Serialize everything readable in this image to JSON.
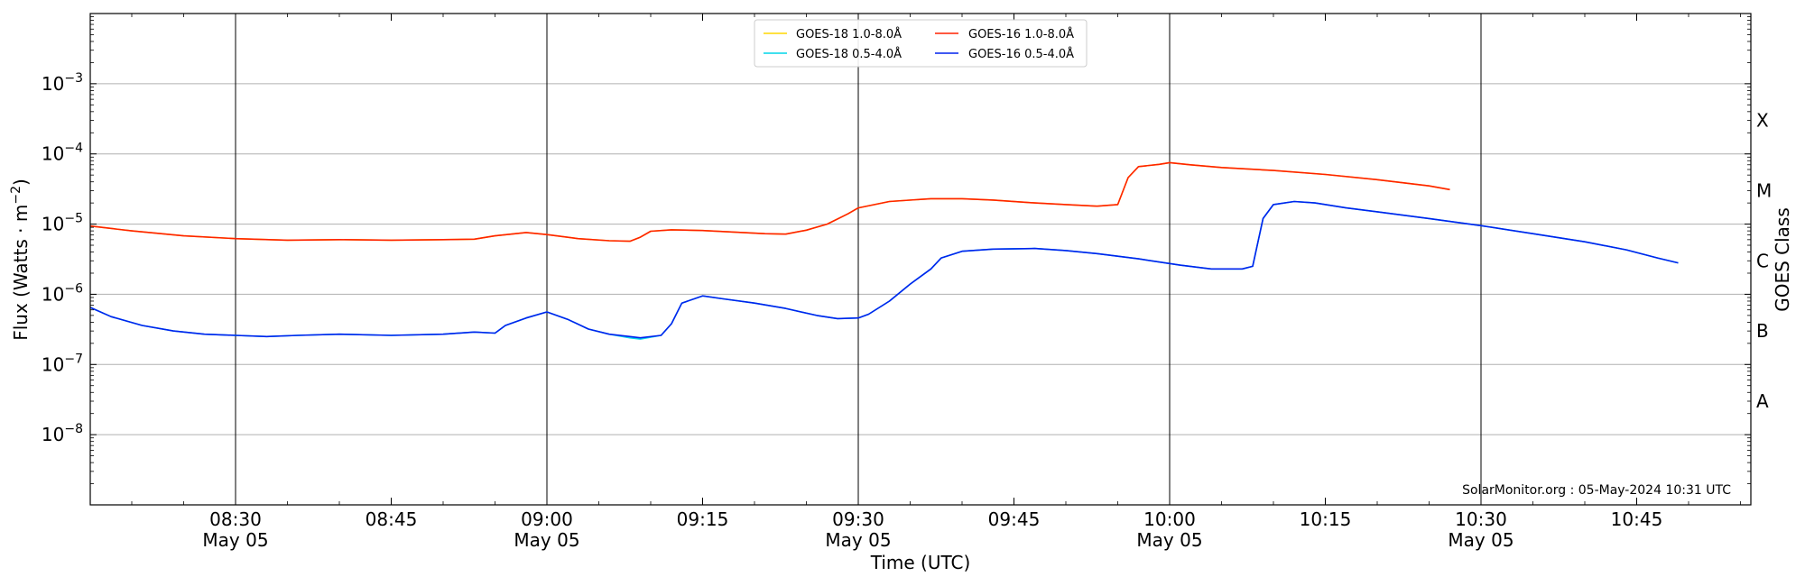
{
  "chart_data": {
    "type": "line",
    "xlabel": "Time (UTC)",
    "ylabel": "Flux (Watts · m⁻²)",
    "y2label": "GOES Class",
    "yscale": "log",
    "ylim": [
      1e-09,
      0.01
    ],
    "xlim": [
      "08:16",
      "10:56"
    ],
    "grid": "horizontal",
    "legend_position": "top-center",
    "watermark": "SolarMonitor.org : 05-May-2024 10:31 UTC",
    "x_ticks": [
      {
        "time": "08:30",
        "label": "08:30",
        "sublabel": "May 05"
      },
      {
        "time": "08:45",
        "label": "08:45",
        "sublabel": ""
      },
      {
        "time": "09:00",
        "label": "09:00",
        "sublabel": "May 05"
      },
      {
        "time": "09:15",
        "label": "09:15",
        "sublabel": ""
      },
      {
        "time": "09:30",
        "label": "09:30",
        "sublabel": "May 05"
      },
      {
        "time": "09:45",
        "label": "09:45",
        "sublabel": ""
      },
      {
        "time": "10:00",
        "label": "10:00",
        "sublabel": "May 05"
      },
      {
        "time": "10:15",
        "label": "10:15",
        "sublabel": ""
      },
      {
        "time": "10:30",
        "label": "10:30",
        "sublabel": "May 05"
      },
      {
        "time": "10:45",
        "label": "10:45",
        "sublabel": ""
      }
    ],
    "day_lines": [
      "08:30",
      "09:00",
      "09:30",
      "10:00",
      "10:30"
    ],
    "y_ticks": [
      {
        "exp": -8,
        "value": 1e-08
      },
      {
        "exp": -7,
        "value": 1e-07
      },
      {
        "exp": -6,
        "value": 1e-06
      },
      {
        "exp": -5,
        "value": 1e-05
      },
      {
        "exp": -4,
        "value": 0.0001
      },
      {
        "exp": -3,
        "value": 0.001
      }
    ],
    "class_labels": [
      {
        "label": "A",
        "value": 3e-08
      },
      {
        "label": "B",
        "value": 3e-07
      },
      {
        "label": "C",
        "value": 3e-06
      },
      {
        "label": "M",
        "value": 3e-05
      },
      {
        "label": "X",
        "value": 0.0003
      }
    ],
    "series": [
      {
        "name": "GOES-18 1.0-8.0Å",
        "color": "#ffd700",
        "points": [
          [
            "08:16",
            9.4e-06
          ],
          [
            "08:20",
            8e-06
          ],
          [
            "08:25",
            6.8e-06
          ],
          [
            "08:30",
            6.2e-06
          ],
          [
            "08:35",
            5.9e-06
          ],
          [
            "08:40",
            6e-06
          ],
          [
            "08:45",
            5.9e-06
          ],
          [
            "08:50",
            6e-06
          ],
          [
            "08:53",
            6.1e-06
          ],
          [
            "08:55",
            6.8e-06
          ],
          [
            "08:58",
            7.6e-06
          ],
          [
            "09:00",
            7.1e-06
          ],
          [
            "09:03",
            6.2e-06
          ],
          [
            "09:06",
            5.8e-06
          ],
          [
            "09:08",
            5.7e-06
          ],
          [
            "09:09",
            6.5e-06
          ],
          [
            "09:10",
            7.9e-06
          ],
          [
            "09:12",
            8.3e-06
          ],
          [
            "09:15",
            8.1e-06
          ],
          [
            "09:18",
            7.7e-06
          ],
          [
            "09:21",
            7.3e-06
          ],
          [
            "09:23",
            7.2e-06
          ],
          [
            "09:25",
            8.2e-06
          ],
          [
            "09:27",
            1e-05
          ],
          [
            "09:29",
            1.4e-05
          ],
          [
            "09:30",
            1.7e-05
          ],
          [
            "09:33",
            2.1e-05
          ],
          [
            "09:37",
            2.3e-05
          ],
          [
            "09:40",
            2.3e-05
          ],
          [
            "09:43",
            2.2e-05
          ],
          [
            "09:47",
            2e-05
          ],
          [
            "09:50",
            1.9e-05
          ],
          [
            "09:53",
            1.8e-05
          ],
          [
            "09:55",
            1.9e-05
          ],
          [
            "09:56",
            4.6e-05
          ],
          [
            "09:57",
            6.6e-05
          ],
          [
            "09:59",
            7.1e-05
          ],
          [
            "10:00",
            7.5e-05
          ],
          [
            "10:02",
            7e-05
          ],
          [
            "10:05",
            6.4e-05
          ],
          [
            "10:10",
            5.8e-05
          ],
          [
            "10:15",
            5.1e-05
          ],
          [
            "10:20",
            4.3e-05
          ],
          [
            "10:25",
            3.5e-05
          ],
          [
            "10:27",
            3.1e-05
          ]
        ]
      },
      {
        "name": "GOES-16 1.0-8.0Å",
        "color": "#ff2200",
        "points": [
          [
            "08:16",
            9.4e-06
          ],
          [
            "08:20",
            8e-06
          ],
          [
            "08:25",
            6.8e-06
          ],
          [
            "08:30",
            6.2e-06
          ],
          [
            "08:35",
            5.9e-06
          ],
          [
            "08:40",
            6e-06
          ],
          [
            "08:45",
            5.9e-06
          ],
          [
            "08:50",
            6e-06
          ],
          [
            "08:53",
            6.1e-06
          ],
          [
            "08:55",
            6.8e-06
          ],
          [
            "08:58",
            7.6e-06
          ],
          [
            "09:00",
            7.1e-06
          ],
          [
            "09:03",
            6.2e-06
          ],
          [
            "09:06",
            5.8e-06
          ],
          [
            "09:08",
            5.7e-06
          ],
          [
            "09:09",
            6.5e-06
          ],
          [
            "09:10",
            7.9e-06
          ],
          [
            "09:12",
            8.3e-06
          ],
          [
            "09:15",
            8.1e-06
          ],
          [
            "09:18",
            7.7e-06
          ],
          [
            "09:21",
            7.3e-06
          ],
          [
            "09:23",
            7.2e-06
          ],
          [
            "09:25",
            8.2e-06
          ],
          [
            "09:27",
            1e-05
          ],
          [
            "09:29",
            1.4e-05
          ],
          [
            "09:30",
            1.7e-05
          ],
          [
            "09:33",
            2.1e-05
          ],
          [
            "09:37",
            2.3e-05
          ],
          [
            "09:40",
            2.3e-05
          ],
          [
            "09:43",
            2.2e-05
          ],
          [
            "09:47",
            2e-05
          ],
          [
            "09:50",
            1.9e-05
          ],
          [
            "09:53",
            1.8e-05
          ],
          [
            "09:55",
            1.9e-05
          ],
          [
            "09:56",
            4.6e-05
          ],
          [
            "09:57",
            6.6e-05
          ],
          [
            "09:59",
            7.1e-05
          ],
          [
            "10:00",
            7.5e-05
          ],
          [
            "10:02",
            7e-05
          ],
          [
            "10:05",
            6.4e-05
          ],
          [
            "10:10",
            5.8e-05
          ],
          [
            "10:15",
            5.1e-05
          ],
          [
            "10:20",
            4.3e-05
          ],
          [
            "10:25",
            3.5e-05
          ],
          [
            "10:27",
            3.1e-05
          ]
        ]
      },
      {
        "name": "GOES-18 0.5-4.0Å",
        "color": "#00d5e8",
        "points": [
          [
            "08:16",
            6.5e-07
          ],
          [
            "08:18",
            4.8e-07
          ],
          [
            "08:21",
            3.6e-07
          ],
          [
            "08:24",
            3e-07
          ],
          [
            "08:27",
            2.7e-07
          ],
          [
            "08:30",
            2.6e-07
          ],
          [
            "08:33",
            2.5e-07
          ],
          [
            "08:36",
            2.6e-07
          ],
          [
            "08:40",
            2.7e-07
          ],
          [
            "08:45",
            2.6e-07
          ],
          [
            "08:50",
            2.7e-07
          ],
          [
            "08:53",
            2.9e-07
          ],
          [
            "08:55",
            2.8e-07
          ],
          [
            "08:56",
            3.6e-07
          ],
          [
            "08:58",
            4.6e-07
          ],
          [
            "09:00",
            5.6e-07
          ],
          [
            "09:02",
            4.4e-07
          ],
          [
            "09:04",
            3.2e-07
          ],
          [
            "09:06",
            2.7e-07
          ],
          [
            "09:08",
            2.4e-07
          ],
          [
            "09:09",
            2.3e-07
          ],
          [
            "09:11",
            2.6e-07
          ],
          [
            "09:12",
            3.8e-07
          ],
          [
            "09:13",
            7.5e-07
          ],
          [
            "09:15",
            9.5e-07
          ],
          [
            "09:17",
            8.6e-07
          ],
          [
            "09:20",
            7.5e-07
          ],
          [
            "09:23",
            6.3e-07
          ],
          [
            "09:26",
            5e-07
          ],
          [
            "09:28",
            4.5e-07
          ],
          [
            "09:30",
            4.6e-07
          ],
          [
            "09:31",
            5.2e-07
          ],
          [
            "09:33",
            8e-07
          ],
          [
            "09:35",
            1.4e-06
          ],
          [
            "09:37",
            2.3e-06
          ],
          [
            "09:38",
            3.3e-06
          ],
          [
            "09:40",
            4.1e-06
          ],
          [
            "09:43",
            4.4e-06
          ],
          [
            "09:47",
            4.5e-06
          ],
          [
            "09:50",
            4.2e-06
          ],
          [
            "09:53",
            3.8e-06
          ],
          [
            "09:57",
            3.2e-06
          ],
          [
            "10:01",
            2.6e-06
          ],
          [
            "10:04",
            2.3e-06
          ],
          [
            "10:07",
            2.3e-06
          ],
          [
            "10:08",
            2.5e-06
          ],
          [
            "10:09",
            1.2e-05
          ],
          [
            "10:10",
            1.9e-05
          ],
          [
            "10:12",
            2.1e-05
          ],
          [
            "10:14",
            2e-05
          ],
          [
            "10:17",
            1.7e-05
          ],
          [
            "10:20",
            1.5e-05
          ],
          [
            "10:25",
            1.2e-05
          ],
          [
            "10:30",
            9.5e-06
          ],
          [
            "10:35",
            7.3e-06
          ],
          [
            "10:40",
            5.6e-06
          ],
          [
            "10:44",
            4.3e-06
          ],
          [
            "10:47",
            3.3e-06
          ],
          [
            "10:49",
            2.8e-06
          ]
        ]
      },
      {
        "name": "GOES-16 0.5-4.0Å",
        "color": "#0022ee",
        "points": [
          [
            "08:16",
            6.5e-07
          ],
          [
            "08:18",
            4.8e-07
          ],
          [
            "08:21",
            3.6e-07
          ],
          [
            "08:24",
            3e-07
          ],
          [
            "08:27",
            2.7e-07
          ],
          [
            "08:30",
            2.6e-07
          ],
          [
            "08:33",
            2.5e-07
          ],
          [
            "08:36",
            2.6e-07
          ],
          [
            "08:40",
            2.7e-07
          ],
          [
            "08:45",
            2.6e-07
          ],
          [
            "08:50",
            2.7e-07
          ],
          [
            "08:53",
            2.9e-07
          ],
          [
            "08:55",
            2.8e-07
          ],
          [
            "08:56",
            3.6e-07
          ],
          [
            "08:58",
            4.6e-07
          ],
          [
            "09:00",
            5.6e-07
          ],
          [
            "09:02",
            4.4e-07
          ],
          [
            "09:04",
            3.2e-07
          ],
          [
            "09:06",
            2.7e-07
          ],
          [
            "09:08",
            2.5e-07
          ],
          [
            "09:09",
            2.4e-07
          ],
          [
            "09:11",
            2.6e-07
          ],
          [
            "09:12",
            3.8e-07
          ],
          [
            "09:13",
            7.5e-07
          ],
          [
            "09:15",
            9.5e-07
          ],
          [
            "09:17",
            8.6e-07
          ],
          [
            "09:20",
            7.5e-07
          ],
          [
            "09:23",
            6.3e-07
          ],
          [
            "09:26",
            5e-07
          ],
          [
            "09:28",
            4.5e-07
          ],
          [
            "09:30",
            4.6e-07
          ],
          [
            "09:31",
            5.2e-07
          ],
          [
            "09:33",
            8e-07
          ],
          [
            "09:35",
            1.4e-06
          ],
          [
            "09:37",
            2.3e-06
          ],
          [
            "09:38",
            3.3e-06
          ],
          [
            "09:40",
            4.1e-06
          ],
          [
            "09:43",
            4.4e-06
          ],
          [
            "09:47",
            4.5e-06
          ],
          [
            "09:50",
            4.2e-06
          ],
          [
            "09:53",
            3.8e-06
          ],
          [
            "09:57",
            3.2e-06
          ],
          [
            "10:01",
            2.6e-06
          ],
          [
            "10:04",
            2.3e-06
          ],
          [
            "10:07",
            2.3e-06
          ],
          [
            "10:08",
            2.5e-06
          ],
          [
            "10:09",
            1.2e-05
          ],
          [
            "10:10",
            1.9e-05
          ],
          [
            "10:12",
            2.1e-05
          ],
          [
            "10:14",
            2e-05
          ],
          [
            "10:17",
            1.7e-05
          ],
          [
            "10:20",
            1.5e-05
          ],
          [
            "10:25",
            1.2e-05
          ],
          [
            "10:30",
            9.5e-06
          ],
          [
            "10:35",
            7.3e-06
          ],
          [
            "10:40",
            5.6e-06
          ],
          [
            "10:44",
            4.3e-06
          ],
          [
            "10:47",
            3.3e-06
          ],
          [
            "10:49",
            2.8e-06
          ]
        ]
      }
    ],
    "legend_order": [
      0,
      2,
      1,
      3
    ]
  }
}
